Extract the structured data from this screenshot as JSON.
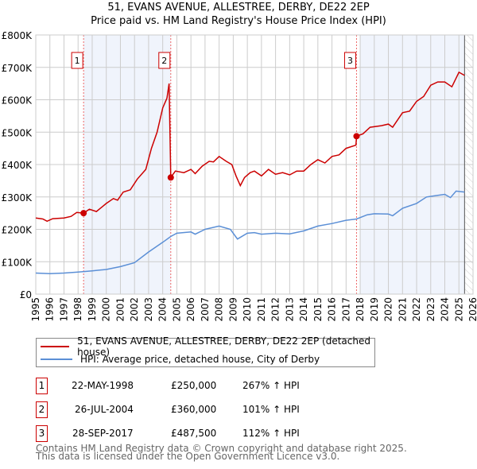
{
  "chart_data": {
    "type": "line",
    "title": "51, EVANS AVENUE, ALLESTREE, DERBY, DE22 2EP",
    "subtitle": "Price paid vs. HM Land Registry's House Price Index (HPI)",
    "xlim": [
      1995,
      2026
    ],
    "ylim": [
      0,
      800000
    ],
    "x_ticks": [
      "1995",
      "1996",
      "1997",
      "1998",
      "1999",
      "2000",
      "2001",
      "2002",
      "2003",
      "2004",
      "2005",
      "2006",
      "2007",
      "2008",
      "2009",
      "2010",
      "2011",
      "2012",
      "2013",
      "2014",
      "2015",
      "2016",
      "2017",
      "2018",
      "2019",
      "2020",
      "2021",
      "2022",
      "2023",
      "2024",
      "2025",
      "2026"
    ],
    "y_ticks": [
      {
        "value": 0,
        "label": "£0"
      },
      {
        "value": 100000,
        "label": "£100K"
      },
      {
        "value": 200000,
        "label": "£200K"
      },
      {
        "value": 300000,
        "label": "£300K"
      },
      {
        "value": 400000,
        "label": "£400K"
      },
      {
        "value": 500000,
        "label": "£500K"
      },
      {
        "value": 600000,
        "label": "£600K"
      },
      {
        "value": 700000,
        "label": "£700K"
      },
      {
        "value": 800000,
        "label": "£800K"
      }
    ],
    "grid": true,
    "series": [
      {
        "name": "51, EVANS AVENUE, ALLESTREE, DERBY, DE22 2EP (detached house)",
        "color": "#cc0000",
        "x": [
          1995,
          1995.5,
          1995.8,
          1996.2,
          1997,
          1997.5,
          1997.9,
          1998.39,
          1998.8,
          1999.3,
          2000,
          2000.5,
          2000.8,
          2001.2,
          2001.7,
          2002.2,
          2002.8,
          2003.2,
          2003.6,
          2004,
          2004.3,
          2004.45,
          2004.57,
          2004.9,
          2005.5,
          2006,
          2006.3,
          2006.8,
          2007.3,
          2007.6,
          2008,
          2008.5,
          2008.9,
          2009.2,
          2009.5,
          2009.8,
          2010.2,
          2010.5,
          2011,
          2011.5,
          2012,
          2012.5,
          2013,
          2013.5,
          2014,
          2014.5,
          2015,
          2015.5,
          2016,
          2016.5,
          2017,
          2017.7,
          2017.74,
          2018.2,
          2018.7,
          2019.5,
          2020,
          2020.3,
          2021,
          2021.5,
          2022,
          2022.5,
          2023,
          2023.5,
          2024,
          2024.5,
          2025,
          2025.4
        ],
        "y": [
          235000,
          232000,
          225000,
          233000,
          235000,
          240000,
          252000,
          250000,
          262000,
          255000,
          280000,
          295000,
          290000,
          315000,
          322000,
          355000,
          385000,
          450000,
          500000,
          575000,
          605000,
          650000,
          360000,
          380000,
          375000,
          385000,
          372000,
          395000,
          410000,
          408000,
          425000,
          410000,
          400000,
          365000,
          335000,
          360000,
          375000,
          380000,
          365000,
          385000,
          370000,
          375000,
          368000,
          380000,
          380000,
          400000,
          415000,
          405000,
          425000,
          430000,
          450000,
          460000,
          487500,
          495000,
          515000,
          520000,
          525000,
          515000,
          560000,
          565000,
          595000,
          610000,
          645000,
          655000,
          655000,
          640000,
          685000,
          675000
        ]
      },
      {
        "name": "HPI: Average price, detached house, City of Derby",
        "color": "#5b8fd6",
        "x": [
          1995,
          1996,
          1997,
          1998,
          1999,
          2000,
          2001,
          2002,
          2003,
          2004,
          2004.57,
          2005,
          2006,
          2006.3,
          2007,
          2008,
          2008.8,
          2009.3,
          2010,
          2010.5,
          2011,
          2012,
          2013,
          2014,
          2015,
          2016,
          2017,
          2017.74,
          2018.5,
          2019,
          2020,
          2020.3,
          2021,
          2022,
          2022.7,
          2023.5,
          2024,
          2024.4,
          2024.8,
          2025.4
        ],
        "y": [
          65000,
          63000,
          65000,
          68000,
          72000,
          76000,
          85000,
          97000,
          130000,
          160000,
          178000,
          188000,
          192000,
          185000,
          200000,
          210000,
          200000,
          170000,
          188000,
          190000,
          185000,
          188000,
          186000,
          195000,
          210000,
          218000,
          228000,
          232000,
          245000,
          248000,
          247000,
          242000,
          265000,
          280000,
          300000,
          305000,
          308000,
          298000,
          318000,
          315000
        ]
      }
    ],
    "sales": [
      {
        "label": "1",
        "x": 1998.39,
        "y": 250000
      },
      {
        "label": "2",
        "x": 2004.57,
        "y": 360000
      },
      {
        "label": "3",
        "x": 2017.74,
        "y": 487500
      }
    ],
    "shaded_ranges": [
      [
        1998.39,
        2004.57
      ],
      [
        2018.0,
        2025.4
      ]
    ],
    "forecast_start": 2025.4,
    "legend_placement": "below"
  },
  "legend": {
    "property": "51, EVANS AVENUE, ALLESTREE, DERBY, DE22 2EP (detached house)",
    "hpi": "HPI: Average price, detached house, City of Derby"
  },
  "transactions": [
    {
      "num": "1",
      "date": "22-MAY-1998",
      "price": "£250,000",
      "hpi": "267% ↑ HPI"
    },
    {
      "num": "2",
      "date": "26-JUL-2004",
      "price": "£360,000",
      "hpi": "101% ↑ HPI"
    },
    {
      "num": "3",
      "date": "28-SEP-2017",
      "price": "£487,500",
      "hpi": "112% ↑ HPI"
    }
  ],
  "footer": {
    "line1": "Contains HM Land Registry data © Crown copyright and database right 2025.",
    "line2": "This data is licensed under the Open Government Licence v3.0."
  }
}
